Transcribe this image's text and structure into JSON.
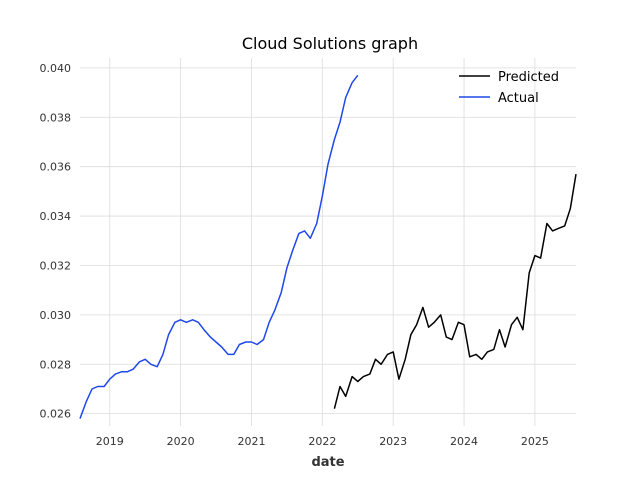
{
  "chart_data": {
    "type": "line",
    "title": "Cloud Solutions graph",
    "xlabel": "date",
    "ylabel": "",
    "xlim": [
      2018.58,
      2025.58
    ],
    "ylim": [
      0.0255,
      0.0404
    ],
    "x_ticks": [
      2019,
      2020,
      2021,
      2022,
      2023,
      2024,
      2025
    ],
    "x_tick_labels": [
      "2019",
      "2020",
      "2021",
      "2022",
      "2023",
      "2024",
      "2025"
    ],
    "y_ticks": [
      0.026,
      0.028,
      0.03,
      0.032,
      0.034,
      0.036,
      0.038,
      0.04
    ],
    "y_tick_labels": [
      "0.026",
      "0.028",
      "0.030",
      "0.032",
      "0.034",
      "0.036",
      "0.038",
      "0.040"
    ],
    "grid": true,
    "legend_position": "top-right",
    "series": [
      {
        "name": "Predicted",
        "color": "#000000",
        "x": [
          2022.17,
          2022.25,
          2022.33,
          2022.42,
          2022.5,
          2022.58,
          2022.67,
          2022.75,
          2022.83,
          2022.92,
          2023.0,
          2023.08,
          2023.17,
          2023.25,
          2023.33,
          2023.42,
          2023.5,
          2023.58,
          2023.67,
          2023.75,
          2023.83,
          2023.92,
          2024.0,
          2024.08,
          2024.17,
          2024.25,
          2024.33,
          2024.42,
          2024.5,
          2024.58,
          2024.67,
          2024.75,
          2024.83,
          2024.92,
          2025.0,
          2025.08,
          2025.17,
          2025.25,
          2025.33,
          2025.42,
          2025.5,
          2025.58
        ],
        "y": [
          0.0262,
          0.0271,
          0.0267,
          0.0275,
          0.0273,
          0.0275,
          0.0276,
          0.0282,
          0.028,
          0.0284,
          0.0285,
          0.0274,
          0.0282,
          0.0292,
          0.0296,
          0.0303,
          0.0295,
          0.0297,
          0.03,
          0.0291,
          0.029,
          0.0297,
          0.0296,
          0.0283,
          0.0284,
          0.0282,
          0.0285,
          0.0286,
          0.0294,
          0.0287,
          0.0296,
          0.0299,
          0.0294,
          0.0317,
          0.0324,
          0.0323,
          0.0337,
          0.0334,
          0.0335,
          0.0336,
          0.0343,
          0.0357
        ]
      },
      {
        "name": "Actual",
        "color": "#1f48ea",
        "x": [
          2018.58,
          2018.67,
          2018.75,
          2018.83,
          2018.92,
          2019.0,
          2019.08,
          2019.17,
          2019.25,
          2019.33,
          2019.42,
          2019.5,
          2019.58,
          2019.67,
          2019.75,
          2019.83,
          2019.92,
          2020.0,
          2020.08,
          2020.17,
          2020.25,
          2020.33,
          2020.42,
          2020.5,
          2020.58,
          2020.67,
          2020.75,
          2020.83,
          2020.92,
          2021.0,
          2021.08,
          2021.17,
          2021.25,
          2021.33,
          2021.42,
          2021.5,
          2021.58,
          2021.67,
          2021.75,
          2021.83,
          2021.92,
          2022.0,
          2022.08,
          2022.17,
          2022.25,
          2022.33,
          2022.42,
          2022.5
        ],
        "y": [
          0.0258,
          0.0265,
          0.027,
          0.0271,
          0.0271,
          0.0274,
          0.0276,
          0.0277,
          0.0277,
          0.0278,
          0.0281,
          0.0282,
          0.028,
          0.0279,
          0.0284,
          0.0292,
          0.0297,
          0.0298,
          0.0297,
          0.0298,
          0.0297,
          0.0294,
          0.0291,
          0.0289,
          0.0287,
          0.0284,
          0.0284,
          0.0288,
          0.0289,
          0.0289,
          0.0288,
          0.029,
          0.0297,
          0.0302,
          0.0309,
          0.0319,
          0.0326,
          0.0333,
          0.0334,
          0.0331,
          0.0337,
          0.0348,
          0.0361,
          0.0371,
          0.0378,
          0.0388,
          0.0394,
          0.0397
        ]
      }
    ]
  }
}
